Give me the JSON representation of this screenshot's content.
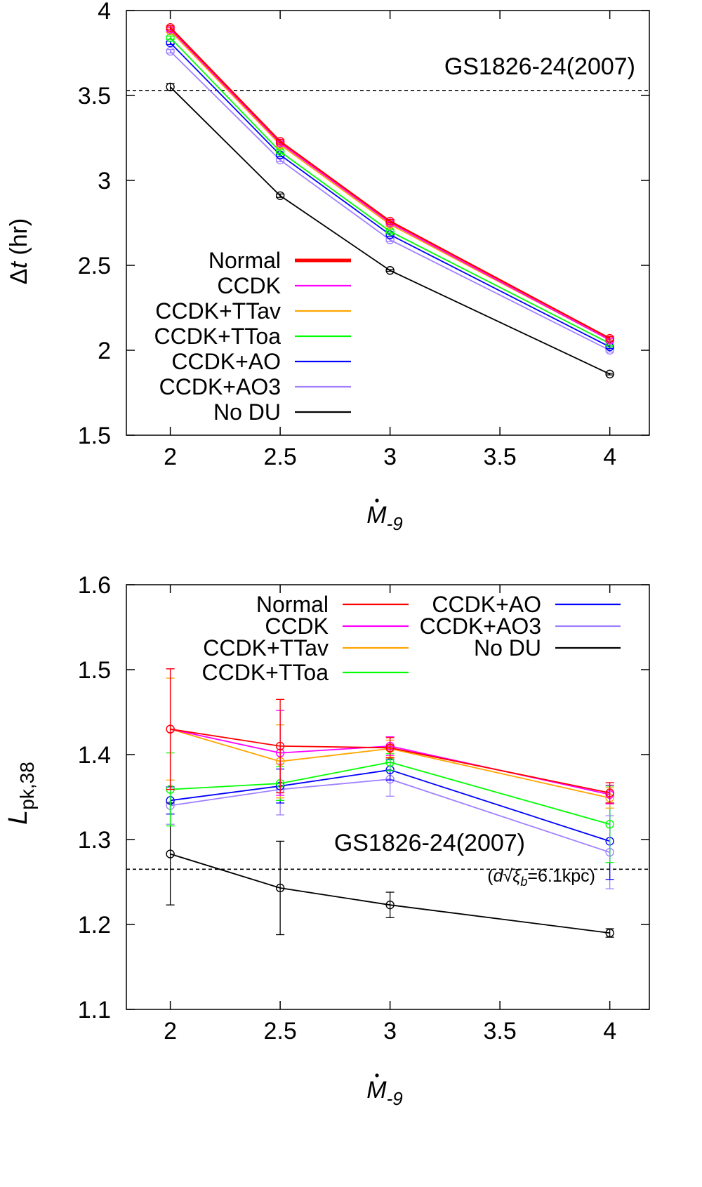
{
  "chart_data": [
    {
      "type": "line",
      "title": "",
      "xlabel": {
        "base": "M",
        "sub": "-9"
      },
      "ylabel": {
        "greek": "Δ",
        "italic": "t",
        "rest": " (hr)"
      },
      "xlim": [
        1.8,
        4.18
      ],
      "ylim": [
        1.5,
        4.0
      ],
      "xticks": [
        "2",
        "2.5",
        "3",
        "3.5",
        "4"
      ],
      "yticks": [
        "1.5",
        "2",
        "2.5",
        "3",
        "3.5",
        "4"
      ],
      "x": [
        2,
        2.5,
        3,
        4
      ],
      "reference": {
        "label": "GS1826-24(2007)",
        "value": 3.53
      },
      "series": [
        {
          "name": "Normal",
          "color": "#ff0000",
          "values": [
            3.9,
            3.23,
            2.76,
            2.07
          ],
          "err": [
            0.01,
            0.01,
            0.01,
            0.01
          ]
        },
        {
          "name": "CCDK",
          "color": "#ff00ff",
          "values": [
            3.89,
            3.22,
            2.75,
            2.06
          ],
          "err": [
            0.01,
            0.01,
            0.01,
            0.01
          ]
        },
        {
          "name": "CCDK+TTav",
          "color": "#ffa500",
          "values": [
            3.88,
            3.21,
            2.74,
            2.06
          ],
          "err": [
            0.01,
            0.01,
            0.01,
            0.01
          ]
        },
        {
          "name": "CCDK+TToa",
          "color": "#00ff00",
          "values": [
            3.84,
            3.17,
            2.7,
            2.04
          ],
          "err": [
            0.01,
            0.01,
            0.01,
            0.01
          ]
        },
        {
          "name": "CCDK+AO",
          "color": "#0000ff",
          "values": [
            3.81,
            3.15,
            2.68,
            2.02
          ],
          "err": [
            0.01,
            0.01,
            0.01,
            0.01
          ]
        },
        {
          "name": "CCDK+AO3",
          "color": "#a080ff",
          "values": [
            3.76,
            3.12,
            2.65,
            2.0
          ],
          "err": [
            0.01,
            0.01,
            0.01,
            0.01
          ]
        },
        {
          "name": "No DU",
          "color": "#000000",
          "values": [
            3.55,
            2.91,
            2.47,
            1.86
          ],
          "err": [
            0.02,
            0.01,
            0.005,
            0.005
          ]
        }
      ]
    },
    {
      "type": "line",
      "title": "",
      "xlabel": {
        "base": "M",
        "sub": "-9"
      },
      "ylabel": {
        "base": "L",
        "sub": "pk,38"
      },
      "xlim": [
        1.8,
        4.18
      ],
      "ylim": [
        1.1,
        1.6
      ],
      "xticks": [
        "2",
        "2.5",
        "3",
        "3.5",
        "4"
      ],
      "yticks": [
        "1.1",
        "1.2",
        "1.3",
        "1.4",
        "1.5",
        "1.6"
      ],
      "x": [
        2,
        2.5,
        3,
        4
      ],
      "reference": {
        "label": "GS1826-24(2007)",
        "value": 1.265,
        "note": {
          "pre": "(",
          "d": "d",
          "root": "√",
          "xi": "ξ",
          "sub": "b",
          "post": "=6.1kpc)"
        }
      },
      "series": [
        {
          "name": "Normal",
          "color": "#ff0000",
          "values": [
            1.43,
            1.41,
            1.408,
            1.355
          ],
          "err": [
            0.071,
            0.055,
            0.012,
            0.012
          ]
        },
        {
          "name": "CCDK",
          "color": "#ff00ff",
          "values": [
            1.43,
            1.402,
            1.41,
            1.353
          ],
          "err": [
            0.071,
            0.05,
            0.011,
            0.011
          ]
        },
        {
          "name": "CCDK+TTav",
          "color": "#ffa500",
          "values": [
            1.43,
            1.392,
            1.407,
            1.349
          ],
          "err": [
            0.06,
            0.043,
            0.01,
            0.012
          ]
        },
        {
          "name": "CCDK+TToa",
          "color": "#00ff00",
          "values": [
            1.359,
            1.366,
            1.391,
            1.318
          ],
          "err": [
            0.043,
            0.02,
            0.01,
            0.045
          ]
        },
        {
          "name": "CCDK+AO",
          "color": "#0000ff",
          "values": [
            1.346,
            1.363,
            1.382,
            1.298
          ],
          "err": [
            0.016,
            0.02,
            0.012,
            0.045
          ]
        },
        {
          "name": "CCDK+AO3",
          "color": "#a080ff",
          "values": [
            1.34,
            1.359,
            1.371,
            1.285
          ],
          "err": [
            0.022,
            0.03,
            0.02,
            0.043
          ]
        },
        {
          "name": "No DU",
          "color": "#000000",
          "values": [
            1.283,
            1.243,
            1.223,
            1.19
          ],
          "err": [
            0.06,
            0.055,
            0.015,
            0.005
          ]
        }
      ]
    }
  ]
}
